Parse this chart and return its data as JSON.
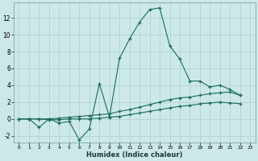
{
  "title": "",
  "xlabel": "Humidex (Indice chaleur)",
  "background_color": "#cde8e8",
  "grid_color": "#b0cfcf",
  "line_color": "#1a6b5a",
  "xlim": [
    -0.5,
    23.5
  ],
  "ylim": [
    -2.8,
    13.8
  ],
  "xticks": [
    0,
    1,
    2,
    3,
    4,
    5,
    6,
    7,
    8,
    9,
    10,
    11,
    12,
    13,
    14,
    15,
    16,
    17,
    18,
    19,
    20,
    21,
    22,
    23
  ],
  "yticks": [
    -2,
    0,
    2,
    4,
    6,
    8,
    10,
    12
  ],
  "line1_x": [
    0,
    1,
    2,
    3,
    4,
    5,
    6,
    7,
    8,
    9,
    10,
    11,
    12,
    13,
    14,
    15,
    16,
    17,
    18,
    19,
    20,
    21,
    22,
    23
  ],
  "line1_y": [
    0.0,
    0.0,
    -1.0,
    0.0,
    -0.5,
    -0.3,
    -2.5,
    -1.2,
    4.2,
    0.2,
    7.2,
    9.5,
    11.5,
    13.0,
    13.2,
    8.7,
    7.1,
    4.5,
    4.5,
    3.8,
    4.0,
    3.5,
    2.8,
    null
  ],
  "line2_x": [
    0,
    1,
    2,
    3,
    4,
    5,
    6,
    7,
    8,
    9,
    10,
    11,
    12,
    13,
    14,
    15,
    16,
    17,
    18,
    19,
    20,
    21,
    22,
    23
  ],
  "line2_y": [
    0.0,
    0.0,
    0.0,
    0.0,
    0.1,
    0.2,
    0.3,
    0.4,
    0.5,
    0.6,
    0.9,
    1.1,
    1.4,
    1.7,
    2.0,
    2.3,
    2.5,
    2.6,
    2.8,
    3.0,
    3.1,
    3.2,
    2.8,
    null
  ],
  "line3_x": [
    0,
    1,
    2,
    3,
    4,
    5,
    6,
    7,
    8,
    9,
    10,
    11,
    12,
    13,
    14,
    15,
    16,
    17,
    18,
    19,
    20,
    21,
    22,
    23
  ],
  "line3_y": [
    0.0,
    0.0,
    0.0,
    -0.1,
    -0.1,
    0.0,
    0.0,
    0.0,
    0.1,
    0.2,
    0.3,
    0.5,
    0.7,
    0.9,
    1.1,
    1.3,
    1.5,
    1.6,
    1.8,
    1.9,
    2.0,
    1.9,
    1.8,
    null
  ]
}
